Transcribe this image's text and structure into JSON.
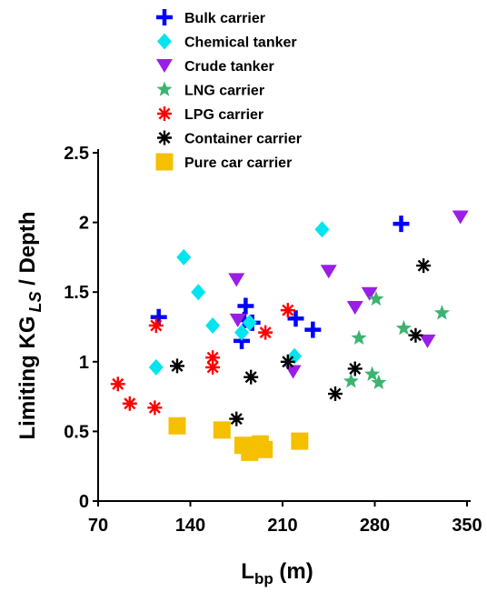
{
  "chart_data": {
    "type": "scatter",
    "title": "",
    "xlabel": "L",
    "xlabel_sub": "bp",
    "xlabel_unit": " (m)",
    "ylabel": "Limiting KG",
    "ylabel_sub": "LS",
    "ylabel_suffix": " / Depth",
    "xlim": [
      70,
      350
    ],
    "ylim": [
      0,
      2.5
    ],
    "xticks": [
      70,
      140,
      210,
      280,
      350
    ],
    "yticks": [
      0,
      0.5,
      1,
      1.5,
      2,
      2.5
    ],
    "ytick_labels": [
      "0",
      "0.5",
      "1",
      "1.5",
      "2",
      "2.5"
    ],
    "grid": false,
    "legend_position": "top",
    "series": [
      {
        "name": "Bulk carrier",
        "marker": "plus",
        "color": "#0000ff",
        "x": [
          116,
          182,
          181,
          179,
          187,
          220,
          233,
          300
        ],
        "y": [
          1.32,
          1.4,
          1.3,
          1.15,
          1.28,
          1.31,
          1.23,
          1.99
        ]
      },
      {
        "name": "Chemical tanker",
        "marker": "diamond",
        "color": "#00e5ee",
        "x": [
          114,
          135,
          146,
          157,
          179,
          185,
          219,
          240
        ],
        "y": [
          0.96,
          1.75,
          1.5,
          1.26,
          1.21,
          1.28,
          1.04,
          1.95
        ]
      },
      {
        "name": "Crude tanker",
        "marker": "triangle-down",
        "color": "#9a1ee6",
        "x": [
          175,
          176,
          218,
          245,
          265,
          276,
          320,
          345
        ],
        "y": [
          1.59,
          1.3,
          0.93,
          1.65,
          1.39,
          1.49,
          1.15,
          2.04
        ]
      },
      {
        "name": "LNG carrier",
        "marker": "star",
        "color": "#3cb371",
        "x": [
          262,
          268,
          278,
          281,
          283,
          302,
          331
        ],
        "y": [
          0.86,
          1.17,
          0.91,
          1.45,
          0.85,
          1.24,
          1.35
        ]
      },
      {
        "name": "LPG carrier",
        "marker": "asterisk",
        "color": "#ff0000",
        "x": [
          85,
          94,
          113,
          114,
          157,
          157,
          197,
          214
        ],
        "y": [
          0.84,
          0.7,
          0.67,
          1.26,
          1.03,
          0.96,
          1.21,
          1.37
        ]
      },
      {
        "name": "Container carrier",
        "marker": "asterisk",
        "color": "#000000",
        "x": [
          130,
          175,
          186,
          214,
          250,
          265,
          311,
          317
        ],
        "y": [
          0.97,
          0.59,
          0.89,
          1.0,
          0.77,
          0.95,
          1.19,
          1.69
        ]
      },
      {
        "name": "Pure car carrier",
        "marker": "square",
        "color": "#f5c000",
        "x": [
          130,
          164,
          180,
          185,
          189,
          193,
          196,
          223
        ],
        "y": [
          0.54,
          0.51,
          0.4,
          0.35,
          0.39,
          0.41,
          0.37,
          0.43
        ]
      }
    ]
  }
}
